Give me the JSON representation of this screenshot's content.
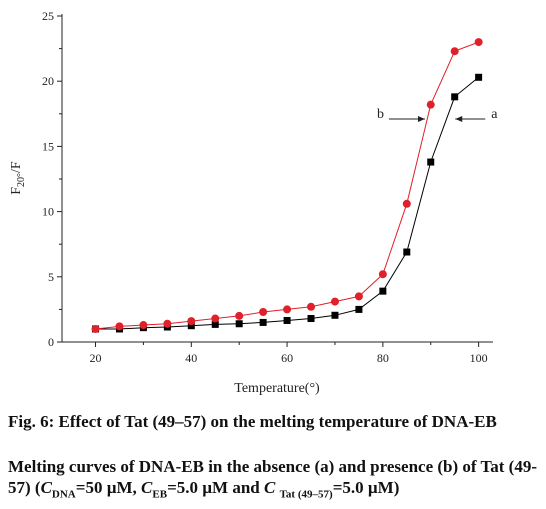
{
  "chart_data": {
    "type": "line",
    "xlabel": "Temperature(°)",
    "ylabel": {
      "main": "F",
      "sub": "20°",
      "rest": "/F"
    },
    "xlim": [
      13,
      103
    ],
    "ylim": [
      0,
      25
    ],
    "x_ticks": [
      20,
      40,
      60,
      80,
      100
    ],
    "y_ticks": [
      0,
      5,
      10,
      15,
      20,
      25
    ],
    "grid": false,
    "series": [
      {
        "name": "a",
        "marker": "square",
        "color": "#000000",
        "x": [
          20,
          25,
          30,
          35,
          40,
          45,
          50,
          55,
          60,
          65,
          70,
          75,
          80,
          85,
          90,
          95,
          100
        ],
        "values": [
          1.0,
          1.0,
          1.1,
          1.15,
          1.25,
          1.35,
          1.4,
          1.5,
          1.65,
          1.8,
          2.05,
          2.5,
          3.9,
          6.9,
          13.8,
          18.8,
          20.3
        ]
      },
      {
        "name": "b",
        "marker": "circle",
        "color": "#e0202a",
        "x": [
          20,
          25,
          30,
          35,
          40,
          45,
          50,
          55,
          60,
          65,
          70,
          75,
          80,
          85,
          90,
          95,
          100
        ],
        "values": [
          1.0,
          1.2,
          1.3,
          1.4,
          1.6,
          1.8,
          2.0,
          2.3,
          2.5,
          2.7,
          3.1,
          3.5,
          5.2,
          10.6,
          18.2,
          22.3,
          23.0
        ]
      }
    ]
  },
  "caption": {
    "line1": "Fig. 6: Effect of Tat (49–57) on the melting temperature of DNA-EB",
    "line2_a": "Melting curves of DNA-EB in the absence (a) and presence (b) of Tat (49-57) (",
    "c_dna": "C",
    "c_dna_sub": "DNA",
    "c_dna_val": "=50 µM, ",
    "c_eb": "C",
    "c_eb_sub": "EB",
    "c_eb_val": "=5.0 µM and ",
    "c_tat": "C",
    "c_tat_sub": "Tat (49–57)",
    "c_tat_val": "=5.0 µM)"
  }
}
